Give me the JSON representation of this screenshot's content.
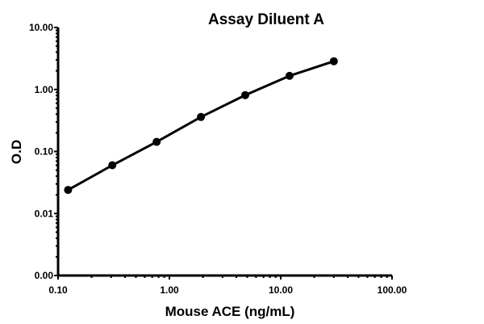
{
  "chart_data": {
    "type": "line",
    "title": "Assay Diluent A",
    "xlabel": "Mouse ACE (ng/mL)",
    "ylabel": "O.D",
    "xscale": "log",
    "yscale": "log",
    "xlim": [
      0.1,
      100
    ],
    "ylim": [
      0.001,
      10
    ],
    "x_ticks": [
      0.1,
      1,
      10,
      100
    ],
    "x_tick_labels": [
      "0.10",
      "1.00",
      "10.00",
      "100.00"
    ],
    "y_ticks": [
      0.001,
      0.01,
      0.1,
      1,
      10
    ],
    "y_tick_labels": [
      "0.00",
      "0.01",
      "0.10",
      "1.00",
      "10.00"
    ],
    "grid": false,
    "legend": "none",
    "series": [
      {
        "name": "Assay Diluent A",
        "color": "#000000",
        "x": [
          0.123,
          0.307,
          0.768,
          1.92,
          4.8,
          12,
          30
        ],
        "y": [
          0.024,
          0.06,
          0.143,
          0.36,
          0.81,
          1.66,
          2.85
        ]
      }
    ]
  }
}
